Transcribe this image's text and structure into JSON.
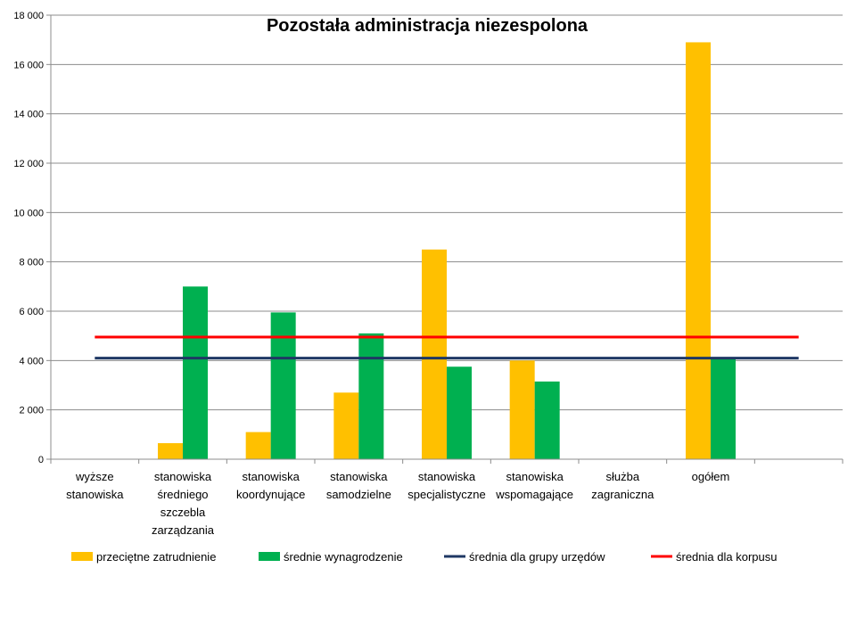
{
  "chart_data": {
    "type": "bar",
    "title": "Pozostała administracja niezespolona",
    "xlabel": "",
    "ylabel": "",
    "ylim": [
      0,
      18000
    ],
    "yticks": [
      0,
      2000,
      4000,
      6000,
      8000,
      10000,
      12000,
      14000,
      16000,
      18000
    ],
    "ytick_labels": [
      "0",
      "2 000",
      "4 000",
      "6 000",
      "8 000",
      "10 000",
      "12 000",
      "14 000",
      "16 000",
      "18 000"
    ],
    "grid": true,
    "legend_position": "bottom",
    "categories": [
      [
        "wyższe",
        "stanowiska"
      ],
      [
        "stanowiska",
        "średniego",
        "szczebla",
        "zarządzania"
      ],
      [
        "stanowiska",
        "koordynujące"
      ],
      [
        "stanowiska",
        "samodzielne"
      ],
      [
        "stanowiska",
        "specjalistyczne"
      ],
      [
        "stanowiska",
        "wspomagające"
      ],
      [
        "służba",
        "zagraniczna"
      ],
      [
        "ogółem"
      ],
      [
        ""
      ]
    ],
    "series": [
      {
        "name": "przeciętne zatrudnienie",
        "kind": "bar",
        "color": "#FFC000",
        "values": [
          0,
          650,
          1100,
          2700,
          8500,
          4000,
          0,
          16900,
          null
        ]
      },
      {
        "name": "średnie wynagrodzenie",
        "kind": "bar",
        "color": "#00B050",
        "values": [
          0,
          7000,
          5950,
          5100,
          3750,
          3150,
          0,
          4100,
          null
        ]
      },
      {
        "name": "średnia dla grupy urzędów",
        "kind": "line",
        "color": "#1F3864",
        "value": 4100
      },
      {
        "name": "średnia dla korpusu",
        "kind": "line",
        "color": "#FF0000",
        "value": 4950
      }
    ]
  }
}
